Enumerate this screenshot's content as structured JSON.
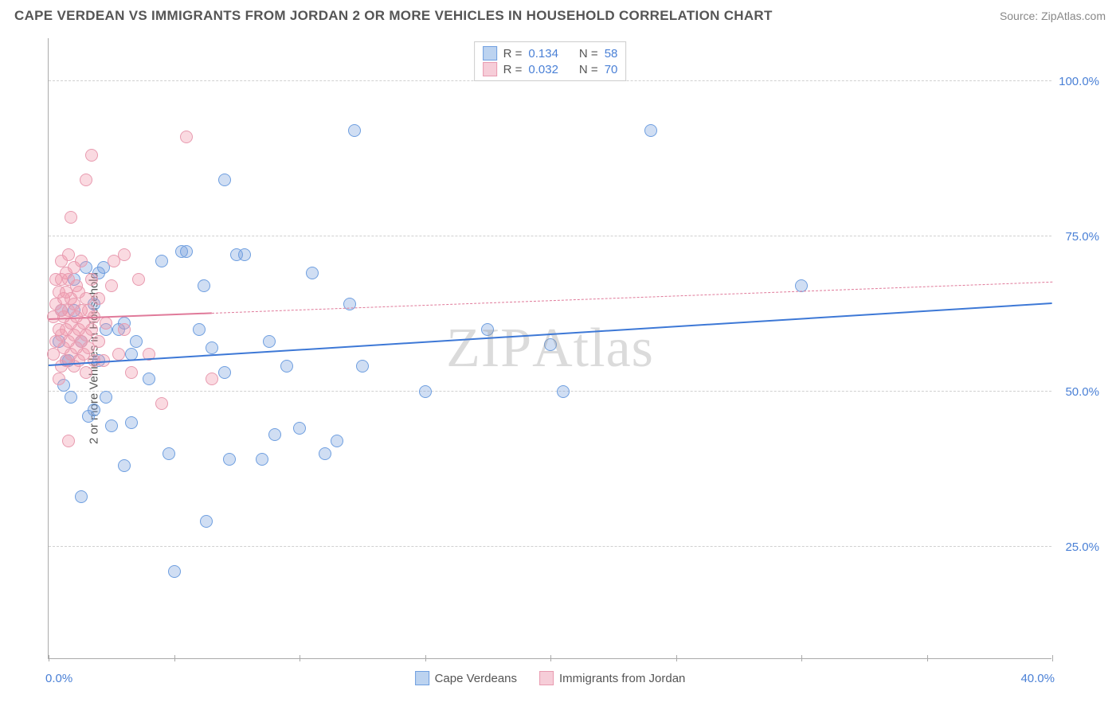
{
  "title": "CAPE VERDEAN VS IMMIGRANTS FROM JORDAN 2 OR MORE VEHICLES IN HOUSEHOLD CORRELATION CHART",
  "source": "Source: ZipAtlas.com",
  "watermark": "ZIPAtlas",
  "ylabel": "2 or more Vehicles in Household",
  "chart": {
    "type": "scatter",
    "xlim": [
      0,
      40
    ],
    "ylim": [
      7,
      107
    ],
    "x_ticks": [
      0,
      5,
      10,
      15,
      20,
      25,
      30,
      35,
      40
    ],
    "x_tick_labels": {
      "0": "0.0%",
      "40": "40.0%"
    },
    "y_gridlines": [
      25,
      50,
      75,
      100
    ],
    "y_tick_labels": {
      "25": "25.0%",
      "50": "50.0%",
      "75": "75.0%",
      "100": "100.0%"
    },
    "background_color": "#ffffff",
    "grid_color": "#d0d0d0",
    "axis_color": "#aaaaaa",
    "tick_label_color": "#4a80d6",
    "marker_radius": 8,
    "marker_stroke_width": 1.5,
    "series": [
      {
        "name": "Cape Verdeans",
        "fill": "rgba(120,160,220,0.35)",
        "stroke": "#6f9fe0",
        "swatch_fill": "#bcd3f0",
        "swatch_border": "#6f9fe0",
        "R": "0.134",
        "N": "58",
        "trend": {
          "x1": 0,
          "y1": 54,
          "x2": 40,
          "y2": 64,
          "solid_until_x": 40,
          "color": "#3d78d6",
          "width": 2.5
        },
        "points": [
          [
            0.4,
            58
          ],
          [
            0.5,
            63
          ],
          [
            0.6,
            51
          ],
          [
            0.7,
            55
          ],
          [
            0.8,
            55
          ],
          [
            0.9,
            49
          ],
          [
            1.0,
            63
          ],
          [
            1.0,
            68
          ],
          [
            1.3,
            33
          ],
          [
            1.3,
            58
          ],
          [
            1.5,
            70
          ],
          [
            1.6,
            46
          ],
          [
            1.8,
            47
          ],
          [
            1.8,
            64
          ],
          [
            2.0,
            55
          ],
          [
            2.0,
            69
          ],
          [
            2.2,
            70
          ],
          [
            2.3,
            49
          ],
          [
            2.3,
            60
          ],
          [
            2.5,
            44.5
          ],
          [
            2.8,
            60
          ],
          [
            3.0,
            38
          ],
          [
            3.0,
            61
          ],
          [
            3.3,
            45
          ],
          [
            3.3,
            56
          ],
          [
            3.5,
            58
          ],
          [
            4.0,
            52
          ],
          [
            4.5,
            71
          ],
          [
            4.8,
            40
          ],
          [
            5.0,
            21
          ],
          [
            5.3,
            72.5
          ],
          [
            5.5,
            72.5
          ],
          [
            6.0,
            60
          ],
          [
            6.2,
            67
          ],
          [
            6.3,
            29
          ],
          [
            6.5,
            57
          ],
          [
            7.0,
            53
          ],
          [
            7.0,
            84
          ],
          [
            7.2,
            39
          ],
          [
            7.5,
            72
          ],
          [
            7.8,
            72
          ],
          [
            8.5,
            39
          ],
          [
            8.8,
            58
          ],
          [
            9.0,
            43
          ],
          [
            9.5,
            54
          ],
          [
            10.0,
            44
          ],
          [
            10.5,
            69
          ],
          [
            11.0,
            40
          ],
          [
            11.5,
            42
          ],
          [
            12.0,
            64
          ],
          [
            12.2,
            92
          ],
          [
            12.5,
            54
          ],
          [
            15.0,
            50
          ],
          [
            17.5,
            60
          ],
          [
            20.0,
            57.5
          ],
          [
            20.5,
            50
          ],
          [
            24.0,
            92
          ],
          [
            30.0,
            67
          ]
        ]
      },
      {
        "name": "Immigrants from Jordan",
        "fill": "rgba(240,150,170,0.35)",
        "stroke": "#e89bb0",
        "swatch_fill": "#f6cdd8",
        "swatch_border": "#e89bb0",
        "R": "0.032",
        "N": "70",
        "trend": {
          "x1": 0,
          "y1": 61.5,
          "x2": 40,
          "y2": 67.5,
          "solid_until_x": 6.5,
          "color": "#e07a9a",
          "width": 2
        },
        "points": [
          [
            0.2,
            56
          ],
          [
            0.2,
            62
          ],
          [
            0.3,
            58
          ],
          [
            0.3,
            64
          ],
          [
            0.3,
            68
          ],
          [
            0.4,
            52
          ],
          [
            0.4,
            60
          ],
          [
            0.4,
            66
          ],
          [
            0.5,
            54
          ],
          [
            0.5,
            59
          ],
          [
            0.5,
            63
          ],
          [
            0.5,
            68
          ],
          [
            0.5,
            71
          ],
          [
            0.6,
            57
          ],
          [
            0.6,
            62
          ],
          [
            0.6,
            65
          ],
          [
            0.7,
            55
          ],
          [
            0.7,
            60
          ],
          [
            0.7,
            66
          ],
          [
            0.7,
            69
          ],
          [
            0.8,
            42
          ],
          [
            0.8,
            58
          ],
          [
            0.8,
            63
          ],
          [
            0.8,
            68
          ],
          [
            0.8,
            72
          ],
          [
            0.9,
            56
          ],
          [
            0.9,
            61
          ],
          [
            0.9,
            65
          ],
          [
            0.9,
            78
          ],
          [
            1.0,
            54
          ],
          [
            1.0,
            59
          ],
          [
            1.0,
            64
          ],
          [
            1.0,
            70
          ],
          [
            1.1,
            57
          ],
          [
            1.1,
            62
          ],
          [
            1.1,
            67
          ],
          [
            1.2,
            55
          ],
          [
            1.2,
            60
          ],
          [
            1.2,
            66
          ],
          [
            1.3,
            58
          ],
          [
            1.3,
            63
          ],
          [
            1.3,
            71
          ],
          [
            1.4,
            56
          ],
          [
            1.4,
            61
          ],
          [
            1.5,
            53
          ],
          [
            1.5,
            59
          ],
          [
            1.5,
            65
          ],
          [
            1.5,
            84
          ],
          [
            1.6,
            57
          ],
          [
            1.6,
            63
          ],
          [
            1.7,
            60
          ],
          [
            1.7,
            68
          ],
          [
            1.7,
            88
          ],
          [
            1.8,
            55
          ],
          [
            1.8,
            62
          ],
          [
            2.0,
            58
          ],
          [
            2.0,
            65
          ],
          [
            2.2,
            55
          ],
          [
            2.3,
            61
          ],
          [
            2.5,
            67
          ],
          [
            2.6,
            71
          ],
          [
            2.8,
            56
          ],
          [
            3.0,
            60
          ],
          [
            3.0,
            72
          ],
          [
            3.3,
            53
          ],
          [
            3.6,
            68
          ],
          [
            4.0,
            56
          ],
          [
            4.5,
            48
          ],
          [
            5.5,
            91
          ],
          [
            6.5,
            52
          ]
        ]
      }
    ]
  },
  "legend_top": {
    "R_label": "R  =",
    "N_label": "N  ="
  },
  "legend_bottom_labels": [
    "Cape Verdeans",
    "Immigrants from Jordan"
  ]
}
